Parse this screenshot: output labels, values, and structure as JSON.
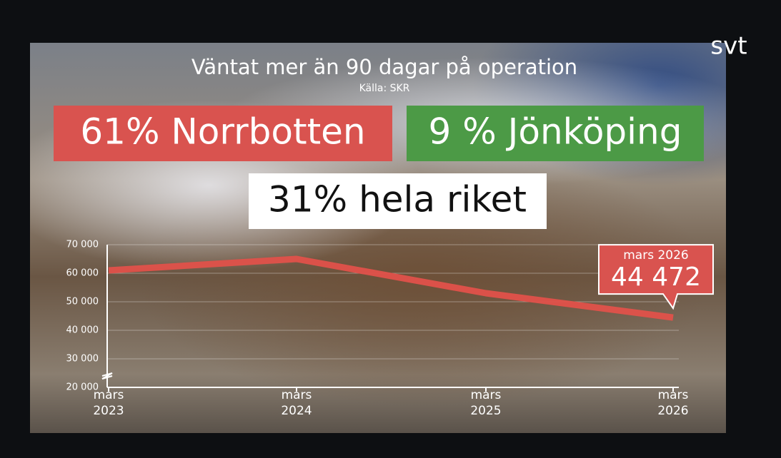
{
  "chart_data": {
    "type": "line",
    "title": "Väntat mer än 90 dagar på operation",
    "subtitle": "Källa: SKR",
    "logo": "svt",
    "highlights": [
      "61% Norrbotten",
      "9 % Jönköping",
      "31% hela riket"
    ],
    "categories": [
      "mars 2023",
      "mars 2024",
      "mars 2025",
      "mars 2026"
    ],
    "values": [
      61000,
      65000,
      53000,
      44472
    ],
    "color": "#e0514a",
    "callout": {
      "category": "mars 2026",
      "text": "44 472"
    },
    "ylim": [
      20000,
      70000
    ],
    "yticks": [
      {
        "value": 20000,
        "label": "20 000"
      },
      {
        "value": 30000,
        "label": "30 000"
      },
      {
        "value": 40000,
        "label": "40 000"
      },
      {
        "value": 50000,
        "label": "50 000"
      },
      {
        "value": 60000,
        "label": "60 000"
      },
      {
        "value": 70000,
        "label": "70 000"
      }
    ],
    "grid": true
  }
}
